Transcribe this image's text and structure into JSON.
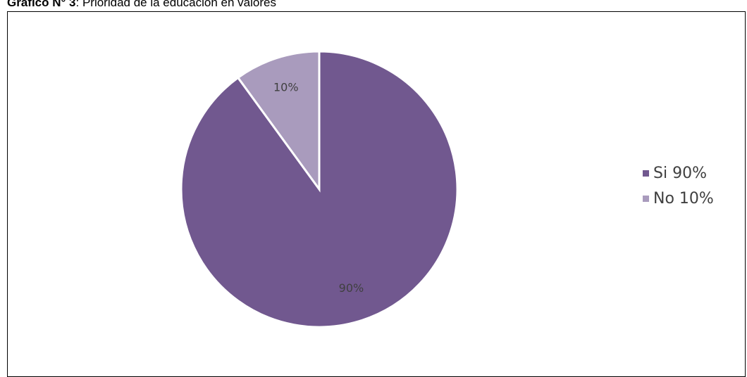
{
  "caption": {
    "label": "Gráfico N° 3",
    "text": ": Prioridad de la educación en valores"
  },
  "chart_data": {
    "type": "pie",
    "title": "",
    "categories": [
      "Si",
      "No"
    ],
    "values": [
      90,
      10
    ],
    "data_labels": [
      "90%",
      "10%"
    ],
    "colors": [
      "#71588F",
      "#A99BBD"
    ],
    "label_color": "#404040",
    "legend": {
      "placement": "right",
      "entries": [
        "Si  90%",
        "No  10%"
      ]
    }
  }
}
